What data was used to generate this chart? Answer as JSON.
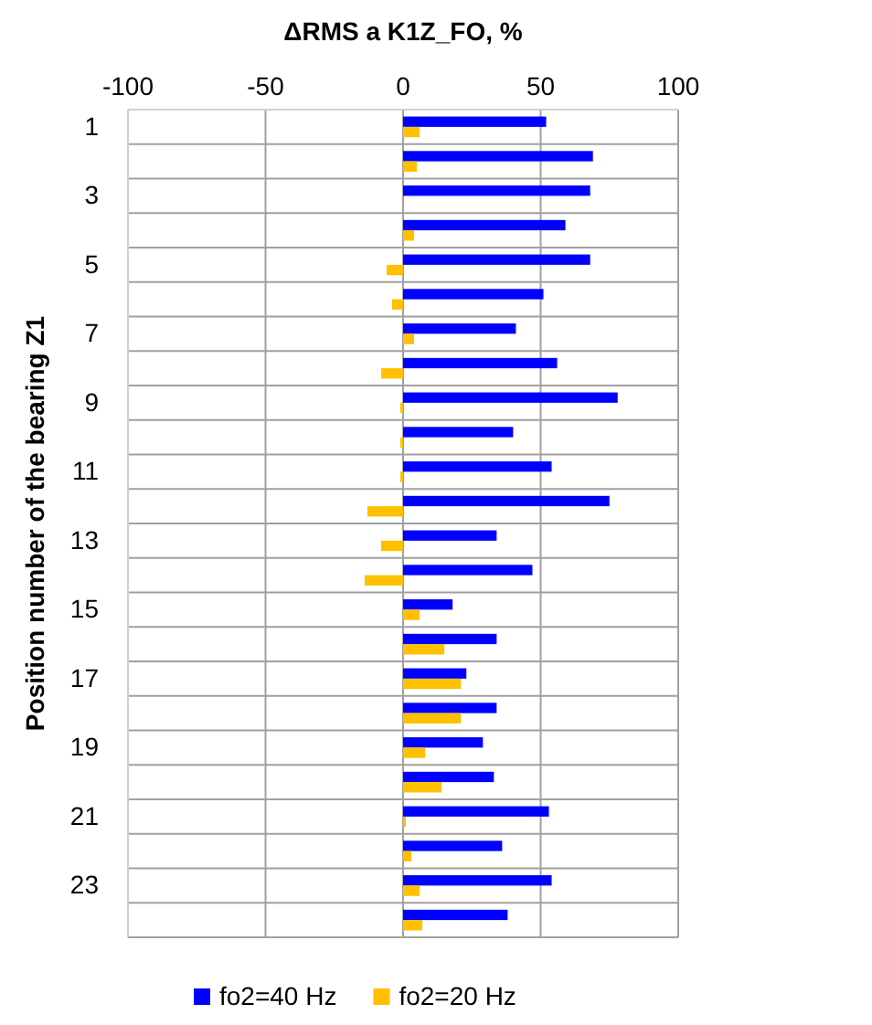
{
  "chart_data": {
    "type": "bar",
    "orientation": "horizontal",
    "xlabel": "ΔRMS a  K1Z_FO, %",
    "ylabel": "Position number of the bearing Z1",
    "categories": [
      "1",
      null,
      "3",
      null,
      "5",
      null,
      "7",
      null,
      "9",
      null,
      "11",
      null,
      "13",
      null,
      "15",
      null,
      "17",
      null,
      "19",
      null,
      "21",
      null,
      "23",
      null
    ],
    "series": [
      {
        "name": "fo2=40 Hz",
        "color": "#0000ff",
        "values": [
          52,
          69,
          68,
          59,
          68,
          51,
          41,
          56,
          78,
          40,
          54,
          75,
          34,
          47,
          18,
          34,
          23,
          34,
          29,
          33,
          53,
          36,
          54,
          38
        ]
      },
      {
        "name": "fo2=20 Hz",
        "color": "#ffc000",
        "values": [
          6,
          5,
          0,
          4,
          -6,
          -4,
          4,
          -8,
          -1,
          -1,
          -1,
          -13,
          -8,
          -14,
          6,
          15,
          21,
          21,
          8,
          14,
          1,
          3,
          6,
          7
        ]
      }
    ],
    "xlim": [
      -100,
      100
    ],
    "xticks": [
      -100,
      -50,
      0,
      50,
      100
    ],
    "grid": true,
    "legend": "bottom"
  }
}
